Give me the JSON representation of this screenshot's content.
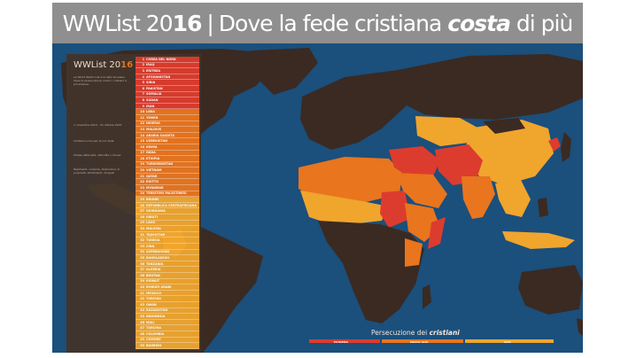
{
  "header": {
    "title_prefix": "WWList 20",
    "title_year_bold": "16",
    "separator": "|",
    "title_mid": "Dove la fede cristiana",
    "title_emph": "costa",
    "title_end": "di più"
  },
  "sidebar": {
    "title_prefix": "WWList 20",
    "title_year": "16",
    "intro": "La World Watch List è la lista dei paesi dove la persecuzione contro i cristiani è più intensa.",
    "period": "1 novembre 2014 – 31 ottobre 2015",
    "note1": "Cristiani uccisi per la loro fede",
    "note2": "Chiese attaccate, distrutte o chiuse",
    "note3": "Rapimenti, violenze, distruzione di proprietà, sfollamenti, rifugiati"
  },
  "list": [
    {
      "rank": "1",
      "country": "COREA DEL NORD",
      "level": "extreme"
    },
    {
      "rank": "2",
      "country": "IRAQ",
      "level": "extreme"
    },
    {
      "rank": "3",
      "country": "ERITREA",
      "level": "extreme"
    },
    {
      "rank": "4",
      "country": "AFGHANISTAN",
      "level": "extreme"
    },
    {
      "rank": "5",
      "country": "SIRIA",
      "level": "extreme"
    },
    {
      "rank": "6",
      "country": "PAKISTAN",
      "level": "extreme"
    },
    {
      "rank": "7",
      "country": "SOMALIA",
      "level": "extreme"
    },
    {
      "rank": "8",
      "country": "SUDAN",
      "level": "extreme"
    },
    {
      "rank": "9",
      "country": "IRAN",
      "level": "extreme"
    },
    {
      "rank": "10",
      "country": "LIBIA",
      "level": "very_high"
    },
    {
      "rank": "11",
      "country": "YEMEN",
      "level": "very_high"
    },
    {
      "rank": "12",
      "country": "NIGERIA",
      "level": "very_high"
    },
    {
      "rank": "13",
      "country": "MALDIVE",
      "level": "very_high"
    },
    {
      "rank": "14",
      "country": "ARABIA SAUDITA",
      "level": "very_high"
    },
    {
      "rank": "15",
      "country": "UZBEKISTAN",
      "level": "very_high"
    },
    {
      "rank": "16",
      "country": "KENYA",
      "level": "very_high"
    },
    {
      "rank": "17",
      "country": "INDIA",
      "level": "very_high"
    },
    {
      "rank": "18",
      "country": "ETIOPIA",
      "level": "very_high"
    },
    {
      "rank": "19",
      "country": "TURKMENISTAN",
      "level": "very_high"
    },
    {
      "rank": "20",
      "country": "VIETNAM",
      "level": "very_high"
    },
    {
      "rank": "21",
      "country": "QATAR",
      "level": "very_high"
    },
    {
      "rank": "22",
      "country": "EGITTO",
      "level": "very_high"
    },
    {
      "rank": "23",
      "country": "MYANMAR",
      "level": "very_high"
    },
    {
      "rank": "24",
      "country": "TERRITORI PALESTINESI",
      "level": "very_high"
    },
    {
      "rank": "25",
      "country": "BRUNEI",
      "level": "high"
    },
    {
      "rank": "26",
      "country": "REPUBBLICA CENTRAFRICANA",
      "level": "high"
    },
    {
      "rank": "27",
      "country": "GIORDANIA",
      "level": "high"
    },
    {
      "rank": "28",
      "country": "GIBUTI",
      "level": "high"
    },
    {
      "rank": "29",
      "country": "LAOS",
      "level": "high"
    },
    {
      "rank": "30",
      "country": "MALESIA",
      "level": "high"
    },
    {
      "rank": "31",
      "country": "TAJIKISTAN",
      "level": "high"
    },
    {
      "rank": "32",
      "country": "TUNISIA",
      "level": "high"
    },
    {
      "rank": "33",
      "country": "CINA",
      "level": "high"
    },
    {
      "rank": "34",
      "country": "AZERBAIGIAN",
      "level": "high"
    },
    {
      "rank": "35",
      "country": "BANGLADESH",
      "level": "high"
    },
    {
      "rank": "36",
      "country": "TANZANIA",
      "level": "high"
    },
    {
      "rank": "37",
      "country": "ALGERIA",
      "level": "high"
    },
    {
      "rank": "38",
      "country": "BHUTAN",
      "level": "high"
    },
    {
      "rank": "39",
      "country": "KUWAIT",
      "level": "high"
    },
    {
      "rank": "40",
      "country": "EMIRATI ARABI",
      "level": "high"
    },
    {
      "rank": "41",
      "country": "MESSICO",
      "level": "high"
    },
    {
      "rank": "42",
      "country": "TURCHIA",
      "level": "high"
    },
    {
      "rank": "43",
      "country": "OMAN",
      "level": "high"
    },
    {
      "rank": "44",
      "country": "KAZAKISTAN",
      "level": "high"
    },
    {
      "rank": "45",
      "country": "INDONESIA",
      "level": "high"
    },
    {
      "rank": "46",
      "country": "MALI",
      "level": "high"
    },
    {
      "rank": "47",
      "country": "TURCHIA",
      "level": "high"
    },
    {
      "rank": "48",
      "country": "COLOMBIA",
      "level": "high"
    },
    {
      "rank": "49",
      "country": "COMORE",
      "level": "high"
    },
    {
      "rank": "50",
      "country": "BAHREIN",
      "level": "high"
    }
  ],
  "legend": {
    "title_prefix": "Persecuzione dei",
    "title_emph": "cristiani",
    "extreme": "ESTREMA",
    "very_high": "MOLTO ALTA",
    "high": "ALTA"
  },
  "colors": {
    "ocean": "#1b4f7c",
    "land": "#3a2a22",
    "extreme": "#dc3c2e",
    "very_high": "#e9751e",
    "high": "#f0a52d",
    "sidebar": "#42342b",
    "header": "#8f8f8f"
  }
}
